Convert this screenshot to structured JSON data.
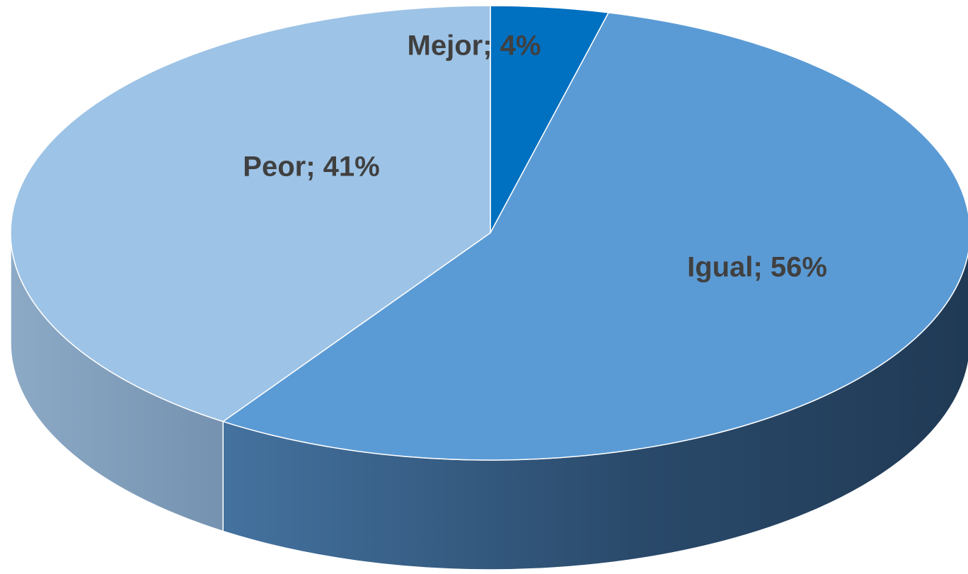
{
  "chart_data": {
    "type": "pie",
    "values": [
      4,
      56,
      41
    ],
    "value_labels": [
      "Mejor; 4%",
      "Igual; 56%",
      "Peor; 41%"
    ],
    "colors": [
      "#0070c0",
      "#5b9bd5",
      "#9dc3e6"
    ],
    "three_d": true
  }
}
